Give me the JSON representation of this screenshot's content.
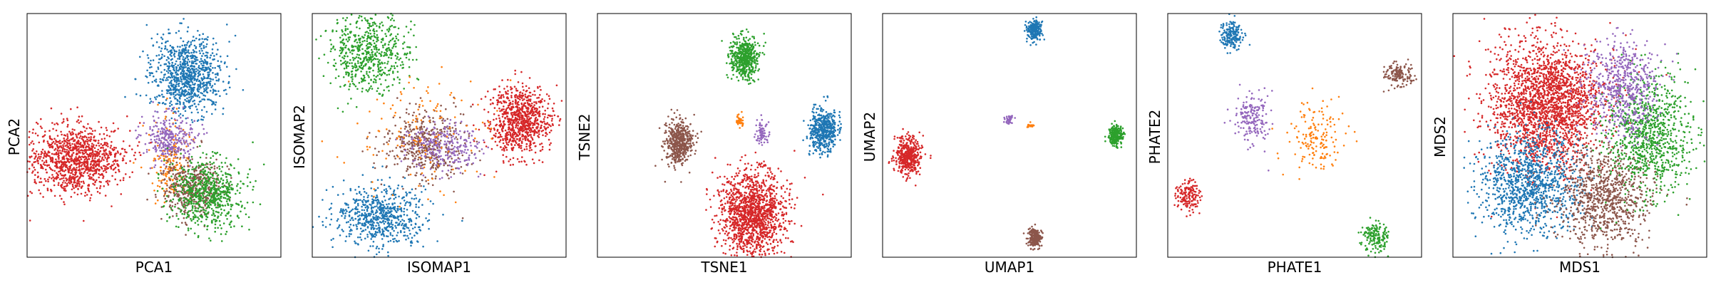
{
  "figure": {
    "colors": {
      "blue": "#1f77b4",
      "orange": "#ff7f0e",
      "green": "#2ca02c",
      "red": "#d62728",
      "purple": "#9467bd",
      "brown": "#8c564b"
    }
  },
  "chart_data": [
    {
      "type": "scatter",
      "xlabel": "PCA1",
      "ylabel": "PCA2",
      "xlim": [
        0,
        100
      ],
      "ylim": [
        0,
        100
      ],
      "grid": false,
      "legend": "none",
      "clusters": [
        {
          "color": "blue",
          "cx": 63,
          "cy": 25,
          "sx": 7,
          "sy": 8,
          "n": 900
        },
        {
          "color": "orange",
          "cx": 57,
          "cy": 60,
          "sx": 4,
          "sy": 8,
          "n": 180
        },
        {
          "color": "purple",
          "cx": 56,
          "cy": 51,
          "sx": 5,
          "sy": 5,
          "n": 300
        },
        {
          "color": "red",
          "cx": 19,
          "cy": 60,
          "sx": 9,
          "sy": 7,
          "n": 1100
        },
        {
          "color": "brown",
          "cx": 65,
          "cy": 71,
          "sx": 6,
          "sy": 6,
          "n": 450
        },
        {
          "color": "green",
          "cx": 71,
          "cy": 74,
          "sx": 7,
          "sy": 7,
          "n": 650
        }
      ]
    },
    {
      "type": "scatter",
      "xlabel": "ISOMAP1",
      "ylabel": "ISOMAP2",
      "xlim": [
        0,
        100
      ],
      "ylim": [
        0,
        100
      ],
      "grid": false,
      "legend": "none",
      "clusters": [
        {
          "color": "green",
          "cx": 22,
          "cy": 16,
          "sx": 8,
          "sy": 8,
          "n": 600
        },
        {
          "color": "blue",
          "cx": 27,
          "cy": 83,
          "sx": 9,
          "sy": 6,
          "n": 650
        },
        {
          "color": "red",
          "cx": 82,
          "cy": 44,
          "sx": 6,
          "sy": 7,
          "n": 850
        },
        {
          "color": "brown",
          "cx": 44,
          "cy": 54,
          "sx": 8,
          "sy": 7,
          "n": 450
        },
        {
          "color": "purple",
          "cx": 52,
          "cy": 55,
          "sx": 7,
          "sy": 5,
          "n": 260
        },
        {
          "color": "orange",
          "cx": 45,
          "cy": 50,
          "sx": 14,
          "sy": 13,
          "n": 130
        }
      ]
    },
    {
      "type": "scatter",
      "xlabel": "TSNE1",
      "ylabel": "TSNE2",
      "xlim": [
        0,
        100
      ],
      "ylim": [
        0,
        100
      ],
      "grid": false,
      "legend": "none",
      "clusters": [
        {
          "color": "green",
          "cx": 58,
          "cy": 18,
          "sx": 2.7,
          "sy": 4.5,
          "n": 500
        },
        {
          "color": "brown",
          "cx": 32,
          "cy": 53,
          "sx": 2.7,
          "sy": 4.5,
          "n": 500
        },
        {
          "color": "blue",
          "cx": 89,
          "cy": 48,
          "sx": 2.7,
          "sy": 4.5,
          "n": 500
        },
        {
          "color": "red",
          "cx": 61,
          "cy": 82,
          "sx": 6.5,
          "sy": 8.5,
          "n": 1400
        },
        {
          "color": "orange",
          "cx": 56,
          "cy": 44,
          "sx": 0.8,
          "sy": 1.4,
          "n": 40
        },
        {
          "color": "purple",
          "cx": 65,
          "cy": 49,
          "sx": 1.3,
          "sy": 2.2,
          "n": 70
        }
      ]
    },
    {
      "type": "scatter",
      "xlabel": "UMAP1",
      "ylabel": "UMAP2",
      "xlim": [
        0,
        100
      ],
      "ylim": [
        0,
        100
      ],
      "grid": false,
      "legend": "none",
      "clusters": [
        {
          "color": "blue",
          "cx": 60,
          "cy": 7,
          "sx": 1.5,
          "sy": 2.1,
          "n": 220
        },
        {
          "color": "red",
          "cx": 10,
          "cy": 58,
          "sx": 2.5,
          "sy": 3.8,
          "n": 450
        },
        {
          "color": "green",
          "cx": 92,
          "cy": 50,
          "sx": 1.4,
          "sy": 2.0,
          "n": 220
        },
        {
          "color": "brown",
          "cx": 60,
          "cy": 92,
          "sx": 1.4,
          "sy": 1.9,
          "n": 200
        },
        {
          "color": "purple",
          "cx": 50,
          "cy": 44,
          "sx": 0.8,
          "sy": 1.0,
          "n": 40
        },
        {
          "color": "orange",
          "cx": 58,
          "cy": 46,
          "sx": 0.6,
          "sy": 0.7,
          "n": 20
        }
      ]
    },
    {
      "type": "scatter",
      "xlabel": "PHATE1",
      "ylabel": "PHATE2",
      "xlim": [
        0,
        100
      ],
      "ylim": [
        0,
        100
      ],
      "grid": false,
      "legend": "none",
      "clusters": [
        {
          "color": "blue",
          "cx": 25,
          "cy": 9,
          "sx": 2.2,
          "sy": 3.2,
          "n": 180
        },
        {
          "color": "brown",
          "cx": 91,
          "cy": 25,
          "sx": 2.5,
          "sy": 2.2,
          "n": 150
        },
        {
          "color": "purple",
          "cx": 33,
          "cy": 43,
          "sx": 3.5,
          "sy": 5,
          "n": 180
        },
        {
          "color": "orange",
          "cx": 58,
          "cy": 50,
          "sx": 6,
          "sy": 7,
          "n": 160
        },
        {
          "color": "red",
          "cx": 8,
          "cy": 75,
          "sx": 2.2,
          "sy": 3.2,
          "n": 150
        },
        {
          "color": "green",
          "cx": 82,
          "cy": 92,
          "sx": 2.5,
          "sy": 3.2,
          "n": 160
        }
      ]
    },
    {
      "type": "scatter",
      "xlabel": "MDS1",
      "ylabel": "MDS2",
      "xlim": [
        0,
        100
      ],
      "ylim": [
        0,
        100
      ],
      "grid": false,
      "legend": "none",
      "clusters": [
        {
          "color": "red",
          "cx": 37,
          "cy": 37,
          "sx": 11,
          "sy": 13,
          "n": 2200
        },
        {
          "color": "blue",
          "cx": 30,
          "cy": 70,
          "sx": 10,
          "sy": 10,
          "n": 1100
        },
        {
          "color": "brown",
          "cx": 60,
          "cy": 75,
          "sx": 9,
          "sy": 10,
          "n": 900
        },
        {
          "color": "green",
          "cx": 77,
          "cy": 50,
          "sx": 8,
          "sy": 12,
          "n": 900
        },
        {
          "color": "purple",
          "cx": 67,
          "cy": 30,
          "sx": 7,
          "sy": 10,
          "n": 600
        }
      ]
    }
  ]
}
